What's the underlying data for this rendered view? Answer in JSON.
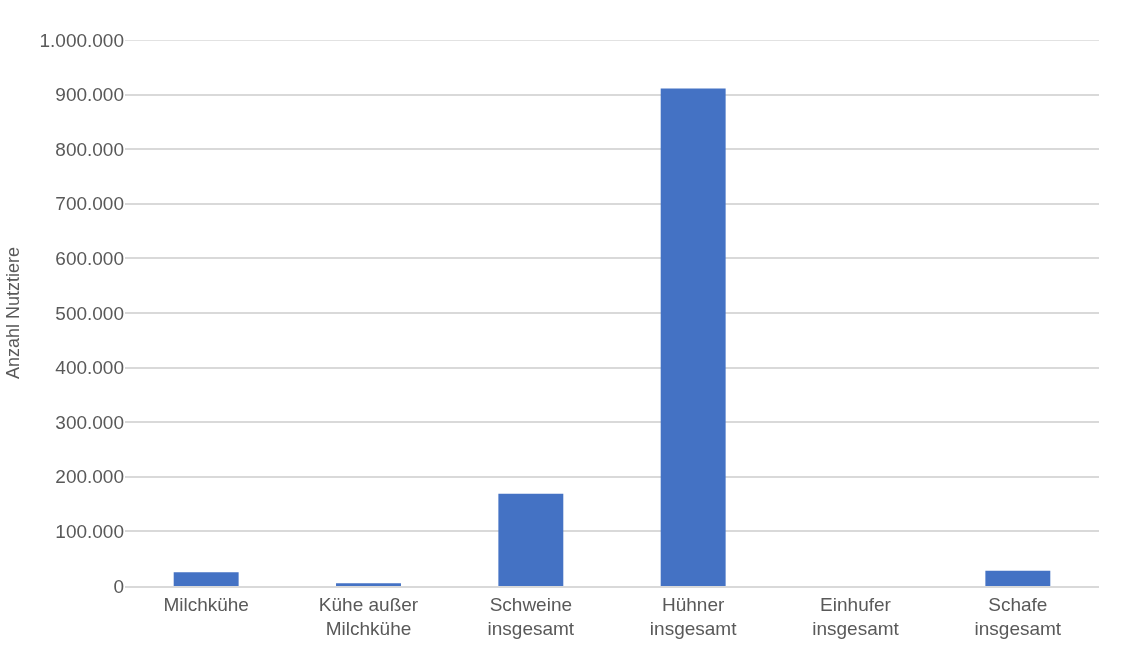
{
  "chart_data": {
    "type": "bar",
    "ylabel": "Anzahl Nutztiere",
    "categories": [
      "Milchkühe",
      "Kühe außer\nMilchkühe",
      "Schweine\ninsgesamt",
      "Hühner\ninsgesamt",
      "Einhufer\ninsgesamt",
      "Schafe\ninsgesamt"
    ],
    "values": [
      25000,
      5000,
      169000,
      911000,
      0,
      28000
    ],
    "color": "#4472c4",
    "ylim": [
      0,
      1000000
    ],
    "yticks": [
      {
        "value": 0,
        "label": "0"
      },
      {
        "value": 100000,
        "label": "100.000"
      },
      {
        "value": 200000,
        "label": "200.000"
      },
      {
        "value": 300000,
        "label": "300.000"
      },
      {
        "value": 400000,
        "label": "400.000"
      },
      {
        "value": 500000,
        "label": "500.000"
      },
      {
        "value": 600000,
        "label": "600.000"
      },
      {
        "value": 700000,
        "label": "700.000"
      },
      {
        "value": 800000,
        "label": "800.000"
      },
      {
        "value": 900000,
        "label": "900.000"
      },
      {
        "value": 1000000,
        "label": "1.000.000"
      }
    ],
    "grid": "y"
  }
}
